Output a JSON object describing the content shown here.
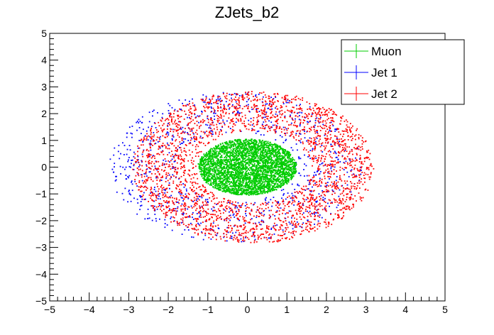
{
  "chart_data": {
    "type": "scatter",
    "title": "ZJets_b2",
    "xlabel": "",
    "ylabel": "",
    "xlim": [
      -5,
      5
    ],
    "ylim": [
      -5,
      5
    ],
    "x_ticks": [
      -5,
      -4,
      -3,
      -2,
      -1,
      0,
      1,
      2,
      3,
      4,
      5
    ],
    "y_ticks": [
      -5,
      -4,
      -3,
      -2,
      -1,
      0,
      1,
      2,
      3,
      4,
      5
    ],
    "x_tick_labels": [
      "−5",
      "−4",
      "−3",
      "−2",
      "−1",
      "0",
      "1",
      "2",
      "3",
      "4",
      "5"
    ],
    "y_tick_labels": [
      "−5",
      "−4",
      "−3",
      "−2",
      "−1",
      "0",
      "1",
      "2",
      "3",
      "4",
      "5"
    ],
    "grid": false,
    "legend_position": "top-right",
    "series": [
      {
        "name": "Muon",
        "color": "#00cc00",
        "shape": "disk",
        "center": [
          0.0,
          0.0
        ],
        "radius_x": [
          0.0,
          1.25
        ],
        "radius_y": [
          0.0,
          1.05
        ]
      },
      {
        "name": "Jet 1",
        "color": "#0000ff",
        "shape": "ring",
        "center": [
          -0.3,
          0.0
        ],
        "radius_x": [
          1.5,
          3.2
        ],
        "radius_y": [
          1.05,
          2.8
        ]
      },
      {
        "name": "Jet 2",
        "color": "#ff0000",
        "shape": "ring",
        "center": [
          0.15,
          0.0
        ],
        "radius_x": [
          1.45,
          3.05
        ],
        "radius_y": [
          1.3,
          2.85
        ]
      }
    ]
  }
}
